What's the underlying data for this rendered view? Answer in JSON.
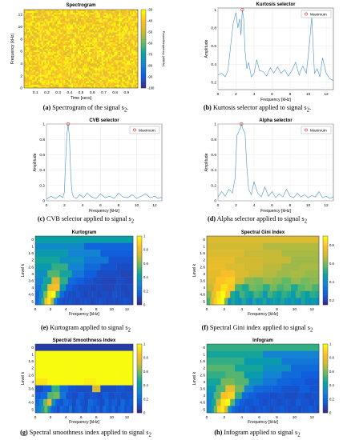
{
  "chart_data": [
    {
      "id": "a",
      "type": "heatmap",
      "title": "Spectrogram",
      "xlabel": "Time [secs]",
      "ylabel": "Frequency (kHz)",
      "xticks": [
        "0.1",
        "0.2",
        "0.3",
        "0.4",
        "0.5",
        "0.6",
        "0.7",
        "0.8",
        "0.9"
      ],
      "yticks": [
        "0",
        "2",
        "4",
        "6",
        "8",
        "10",
        "12"
      ],
      "xlim": [
        0,
        1
      ],
      "ylim": [
        0,
        12.8
      ],
      "colorbar_label": "Power/frequency (dB/Hz)",
      "colorbar_ticks": [
        "-30",
        "-40",
        "-50",
        "-60",
        "-70",
        "-80",
        "-90",
        "-100"
      ],
      "colorbar_range": [
        -100,
        -30
      ],
      "pattern": "broadband noise, mostly -45 to -30 dB/Hz",
      "colormap": "parula"
    },
    {
      "id": "b",
      "type": "line",
      "title": "Kurtosis selector",
      "xlabel": "Frequency [kHz]",
      "ylabel": "Amplitude",
      "xticks": [
        "0",
        "2",
        "4",
        "6",
        "8",
        "10",
        "12"
      ],
      "yticks": [
        "0.2",
        "0.4",
        "0.6",
        "0.8",
        "1"
      ],
      "xlim": [
        0,
        12.8
      ],
      "ylim": [
        0.12,
        1.02
      ],
      "legend": "Maximum",
      "legend_position": "top-right",
      "maximum": {
        "x": 2.7,
        "y": 1.0
      },
      "series_color": "#4a90c8",
      "x": [
        0,
        0.4,
        0.8,
        1.1,
        1.4,
        1.7,
        2.0,
        2.2,
        2.4,
        2.55,
        2.7,
        2.85,
        3.0,
        3.2,
        3.4,
        3.7,
        4.0,
        4.3,
        4.6,
        5.0,
        5.4,
        5.8,
        6.2,
        6.6,
        7.0,
        7.4,
        7.8,
        8.2,
        8.6,
        9.0,
        9.4,
        9.8,
        10.1,
        10.4,
        10.7,
        11.0,
        11.3,
        11.6,
        12.0,
        12.4,
        12.8
      ],
      "y": [
        0.28,
        0.3,
        0.26,
        0.33,
        0.6,
        0.86,
        0.97,
        0.8,
        0.9,
        0.72,
        1.0,
        0.9,
        0.55,
        0.35,
        0.42,
        0.26,
        0.3,
        0.45,
        0.33,
        0.32,
        0.27,
        0.36,
        0.3,
        0.37,
        0.3,
        0.34,
        0.27,
        0.33,
        0.42,
        0.28,
        0.38,
        0.3,
        0.58,
        0.92,
        0.3,
        0.35,
        0.26,
        0.47,
        0.3,
        0.24,
        0.22
      ]
    },
    {
      "id": "c",
      "type": "line",
      "title": "CVB selector",
      "xlabel": "Frequency [kHz]",
      "ylabel": "Amplitude",
      "xticks": [
        "0",
        "2",
        "4",
        "6",
        "8",
        "10",
        "12"
      ],
      "yticks": [
        "0",
        "0.2",
        "0.4",
        "0.6",
        "0.8",
        "1"
      ],
      "xlim": [
        0,
        12.8
      ],
      "ylim": [
        0,
        1
      ],
      "legend": "Maximum",
      "legend_position": "top-right",
      "maximum": {
        "x": 2.4,
        "y": 1.0
      },
      "series_color": "#4a90c8",
      "x": [
        0,
        0.5,
        1.0,
        1.5,
        1.8,
        2.0,
        2.1,
        2.25,
        2.4,
        2.55,
        2.7,
        2.85,
        3.0,
        3.3,
        3.7,
        4.1,
        4.5,
        5.0,
        5.5,
        6.0,
        6.5,
        7.0,
        7.5,
        8.0,
        8.5,
        9.0,
        9.5,
        10.0,
        10.5,
        11.0,
        11.5,
        12.0,
        12.4,
        12.8
      ],
      "y": [
        0.02,
        0.06,
        0.03,
        0.07,
        0.04,
        0.12,
        0.45,
        0.85,
        1.0,
        0.82,
        0.3,
        0.1,
        0.05,
        0.03,
        0.08,
        0.04,
        0.1,
        0.05,
        0.03,
        0.09,
        0.04,
        0.06,
        0.03,
        0.1,
        0.05,
        0.04,
        0.08,
        0.03,
        0.06,
        0.09,
        0.04,
        0.06,
        0.03,
        0.05
      ]
    },
    {
      "id": "d",
      "type": "line",
      "title": "Alpha selector",
      "xlabel": "Frequency [kHz]",
      "ylabel": "Amplitude",
      "xticks": [
        "0",
        "2",
        "4",
        "6",
        "8",
        "10",
        "12"
      ],
      "yticks": [
        "0",
        "0.2",
        "0.4",
        "0.6",
        "0.8",
        "1"
      ],
      "xlim": [
        0,
        12.8
      ],
      "ylim": [
        0,
        1
      ],
      "legend": "Maximum",
      "legend_position": "top-right",
      "maximum": {
        "x": 2.6,
        "y": 1.0
      },
      "series_color": "#4a90c8",
      "x": [
        0,
        0.4,
        0.8,
        1.2,
        1.6,
        1.9,
        2.1,
        2.3,
        2.5,
        2.6,
        2.8,
        3.0,
        3.2,
        3.4,
        3.7,
        4.0,
        4.4,
        4.8,
        5.2,
        5.6,
        6.0,
        6.4,
        6.8,
        7.2,
        7.6,
        8.0,
        8.4,
        8.8,
        9.2,
        9.6,
        10.0,
        10.4,
        10.8,
        11.2,
        11.6,
        12.0,
        12.4,
        12.8
      ],
      "y": [
        0.05,
        0.12,
        0.06,
        0.15,
        0.1,
        0.3,
        0.85,
        0.9,
        0.95,
        1.0,
        0.92,
        0.88,
        0.45,
        0.15,
        0.08,
        0.25,
        0.1,
        0.05,
        0.18,
        0.06,
        0.12,
        0.04,
        0.09,
        0.05,
        0.15,
        0.06,
        0.04,
        0.1,
        0.05,
        0.08,
        0.04,
        0.07,
        0.05,
        0.12,
        0.04,
        0.06,
        0.03,
        0.05
      ]
    },
    {
      "id": "e",
      "type": "heatmap",
      "title": "Kurtogram",
      "xlabel": "Frequency [kHz]",
      "ylabel": "Level k",
      "xticks": [
        "0",
        "2",
        "4",
        "6",
        "8",
        "10",
        "12"
      ],
      "yticks": [
        "0",
        "1",
        "1.6",
        "2",
        "2.6",
        "3",
        "3.6",
        "4",
        "4.6",
        "5"
      ],
      "colorbar_ticks": [
        "0",
        "0.2",
        "0.4",
        "0.6",
        "0.8",
        "1"
      ],
      "colorbar_range": [
        0,
        1
      ],
      "colormap": "parula",
      "rows": [
        [
          0.42
        ],
        [
          0.33,
          0.18
        ],
        [
          0.4,
          0.3,
          0.15
        ],
        [
          0.45,
          0.35,
          0.25,
          0.12
        ],
        [
          0.4,
          0.5,
          0.3,
          0.2,
          0.12,
          0.1
        ],
        [
          0.35,
          0.55,
          0.45,
          0.25,
          0.15,
          0.1,
          0.1,
          0.08
        ],
        [
          0.3,
          0.45,
          0.75,
          0.5,
          0.2,
          0.15,
          0.12,
          0.1,
          0.08,
          0.08,
          0.1,
          0.08
        ],
        [
          0.25,
          0.45,
          0.8,
          0.85,
          0.4,
          0.15,
          0.12,
          0.1,
          0.1,
          0.08,
          0.1,
          0.08,
          0.08,
          0.1,
          0.08,
          0.1
        ],
        [
          0.2,
          0.35,
          0.6,
          0.95,
          1.0,
          0.5,
          0.2,
          0.12,
          0.1,
          0.1,
          0.12,
          0.1,
          0.08,
          0.1,
          0.1,
          0.08,
          0.1,
          0.1,
          0.08,
          0.12,
          0.1,
          0.1,
          0.08,
          0.1
        ],
        [
          0.2,
          0.3,
          0.5,
          0.85,
          0.95,
          0.7,
          0.3,
          0.15,
          0.12,
          0.1,
          0.1,
          0.12,
          0.1,
          0.08,
          0.1,
          0.1,
          0.12,
          0.1,
          0.08,
          0.1,
          0.1,
          0.12,
          0.1,
          0.08,
          0.1,
          0.1,
          0.08,
          0.1,
          0.1,
          0.12,
          0.1,
          0.08
        ]
      ]
    },
    {
      "id": "f",
      "type": "heatmap",
      "title": "Spectral Gini Index",
      "xlabel": "Frequency [kHz]",
      "ylabel": "Level k",
      "xticks": [
        "0",
        "2",
        "4",
        "6",
        "8",
        "10",
        "12"
      ],
      "yticks": [
        "0",
        "1",
        "1.6",
        "2",
        "2.6",
        "3",
        "3.6",
        "4",
        "4.6",
        "5"
      ],
      "colorbar_ticks": [
        "0.2",
        "0.4",
        "0.6",
        "0.8"
      ],
      "colorbar_range": [
        0.15,
        0.9
      ],
      "colormap": "parula",
      "rows": [
        [
          0.72
        ],
        [
          0.7,
          0.66
        ],
        [
          0.72,
          0.68,
          0.65
        ],
        [
          0.74,
          0.7,
          0.68,
          0.64
        ],
        [
          0.75,
          0.72,
          0.7,
          0.67,
          0.64,
          0.65
        ],
        [
          0.74,
          0.78,
          0.72,
          0.68,
          0.66,
          0.64,
          0.65,
          0.63
        ],
        [
          0.72,
          0.8,
          0.82,
          0.7,
          0.62,
          0.6,
          0.64,
          0.62,
          0.58,
          0.63,
          0.6,
          0.62
        ],
        [
          0.68,
          0.78,
          0.85,
          0.8,
          0.55,
          0.5,
          0.6,
          0.58,
          0.52,
          0.6,
          0.55,
          0.58,
          0.5,
          0.57,
          0.6,
          0.55
        ],
        [
          0.62,
          0.75,
          0.85,
          0.9,
          0.8,
          0.5,
          0.45,
          0.55,
          0.5,
          0.48,
          0.55,
          0.52,
          0.45,
          0.55,
          0.5,
          0.48,
          0.53,
          0.5,
          0.45,
          0.55,
          0.5,
          0.47,
          0.52,
          0.5
        ],
        [
          0.55,
          0.7,
          0.82,
          0.88,
          0.9,
          0.6,
          0.4,
          0.5,
          0.45,
          0.4,
          0.5,
          0.45,
          0.38,
          0.5,
          0.42,
          0.45,
          0.5,
          0.4,
          0.45,
          0.48,
          0.42,
          0.5,
          0.45,
          0.4,
          0.48,
          0.44,
          0.4,
          0.5,
          0.45,
          0.42,
          0.47,
          0.4
        ]
      ]
    },
    {
      "id": "g",
      "type": "heatmap",
      "title": "Spectral Smoothness Index",
      "xlabel": "Frequency [kHz]",
      "ylabel": "Level k",
      "xticks": [
        "0",
        "2",
        "4",
        "6",
        "8",
        "10",
        "12"
      ],
      "yticks": [
        "0",
        "1",
        "1.6",
        "2",
        "2.6",
        "3",
        "3.6",
        "4",
        "4.6",
        "5"
      ],
      "colorbar_ticks": [
        "0",
        "0.2",
        "0.4",
        "0.6",
        "0.8",
        "1"
      ],
      "colorbar_range": [
        0,
        1
      ],
      "colormap": "parula",
      "rows": [
        [
          0.05
        ],
        [
          1.0,
          1.0
        ],
        [
          1.0,
          1.0,
          1.0
        ],
        [
          1.0,
          1.0,
          1.0,
          1.0
        ],
        [
          1.0,
          1.0,
          1.0,
          1.0,
          1.0,
          1.0
        ],
        [
          0.95,
          1.0,
          1.0,
          1.0,
          0.97,
          1.0,
          1.0,
          1.0
        ],
        [
          0.1,
          0.15,
          0.5,
          0.2,
          0.12,
          0.1,
          0.1,
          0.75,
          0.1,
          0.1,
          0.12,
          0.1
        ],
        [
          0.15,
          0.2,
          0.55,
          0.6,
          0.25,
          0.12,
          0.1,
          0.15,
          0.1,
          0.12,
          0.1,
          0.15,
          0.1,
          0.12,
          0.1,
          0.12
        ],
        [
          0.2,
          0.3,
          0.6,
          0.8,
          0.35,
          0.15,
          0.12,
          0.2,
          0.15,
          0.1,
          0.18,
          0.12,
          0.1,
          0.2,
          0.15,
          0.12,
          0.1,
          0.18,
          0.12,
          0.15,
          0.1,
          0.2,
          0.12,
          0.15
        ],
        [
          0.25,
          0.3,
          0.45,
          0.6,
          0.4,
          0.2,
          0.15,
          0.1,
          0.2,
          0.15,
          0.12,
          0.25,
          0.1,
          0.15,
          0.2,
          0.12,
          0.1,
          0.2,
          0.15,
          0.12,
          0.18,
          0.1,
          0.2,
          0.15,
          0.12,
          0.2,
          0.1,
          0.15,
          0.2,
          0.12,
          0.15,
          0.1
        ]
      ]
    },
    {
      "id": "h",
      "type": "heatmap",
      "title": "Infogram",
      "xlabel": "Frequency [kHz]",
      "ylabel": "Level k",
      "xticks": [
        "0",
        "2",
        "4",
        "6",
        "8",
        "10",
        "12"
      ],
      "yticks": [
        "0",
        "1",
        "1.6",
        "2",
        "2.6",
        "3",
        "3.6",
        "4",
        "4.6",
        "5"
      ],
      "colorbar_ticks": [
        "0",
        "0.2",
        "0.4",
        "0.6",
        "0.8",
        "1"
      ],
      "colorbar_range": [
        0,
        1
      ],
      "colormap": "parula",
      "rows": [
        [
          0.5
        ],
        [
          0.45,
          0.3
        ],
        [
          0.5,
          0.4,
          0.25
        ],
        [
          0.55,
          0.45,
          0.35,
          0.2
        ],
        [
          0.5,
          0.55,
          0.4,
          0.3,
          0.2,
          0.15
        ],
        [
          0.45,
          0.6,
          0.55,
          0.35,
          0.25,
          0.18,
          0.15,
          0.12
        ],
        [
          0.4,
          0.55,
          0.8,
          0.6,
          0.3,
          0.2,
          0.18,
          0.15,
          0.12,
          0.12,
          0.15,
          0.12
        ],
        [
          0.35,
          0.55,
          0.85,
          0.9,
          0.5,
          0.2,
          0.15,
          0.12,
          0.12,
          0.1,
          0.12,
          0.1,
          0.1,
          0.12,
          0.1,
          0.12
        ],
        [
          0.3,
          0.45,
          0.7,
          0.95,
          1.0,
          0.55,
          0.25,
          0.15,
          0.12,
          0.12,
          0.15,
          0.12,
          0.1,
          0.12,
          0.12,
          0.1,
          0.12,
          0.12,
          0.1,
          0.15,
          0.12,
          0.12,
          0.1,
          0.12
        ],
        [
          0.3,
          0.4,
          0.6,
          0.9,
          0.95,
          0.75,
          0.35,
          0.2,
          0.15,
          0.12,
          0.12,
          0.15,
          0.12,
          0.1,
          0.12,
          0.12,
          0.15,
          0.12,
          0.1,
          0.12,
          0.12,
          0.15,
          0.12,
          0.1,
          0.12,
          0.12,
          0.1,
          0.12,
          0.12,
          0.15,
          0.12,
          0.1
        ]
      ]
    }
  ],
  "captions": {
    "a": {
      "letter": "(a)",
      "text": "Spectrogram of the signal s",
      "sub": "2",
      "end": "."
    },
    "b": {
      "letter": "(b)",
      "text": "Kurtosis selector applied to signal s",
      "sub": "2",
      "end": "."
    },
    "c": {
      "letter": "(c)",
      "text": "CVB selector applied to signal s",
      "sub": "2",
      "end": ""
    },
    "d": {
      "letter": "(d)",
      "text": "Alpha selector applied to signal s",
      "sub": "2",
      "end": ""
    },
    "e": {
      "letter": "(e)",
      "text": "Kurtogram applied to signal s",
      "sub": "2",
      "end": ""
    },
    "f": {
      "letter": "(f)",
      "text": "Spectral Gini index applied to signal s",
      "sub": "2",
      "end": ""
    },
    "g": {
      "letter": "(g)",
      "text": "Spectral smoothness index applied to signal s",
      "sub": "2",
      "end": ""
    },
    "h": {
      "letter": "(h)",
      "text": "Infogram applied to signal s",
      "sub": "2",
      "end": ""
    }
  }
}
